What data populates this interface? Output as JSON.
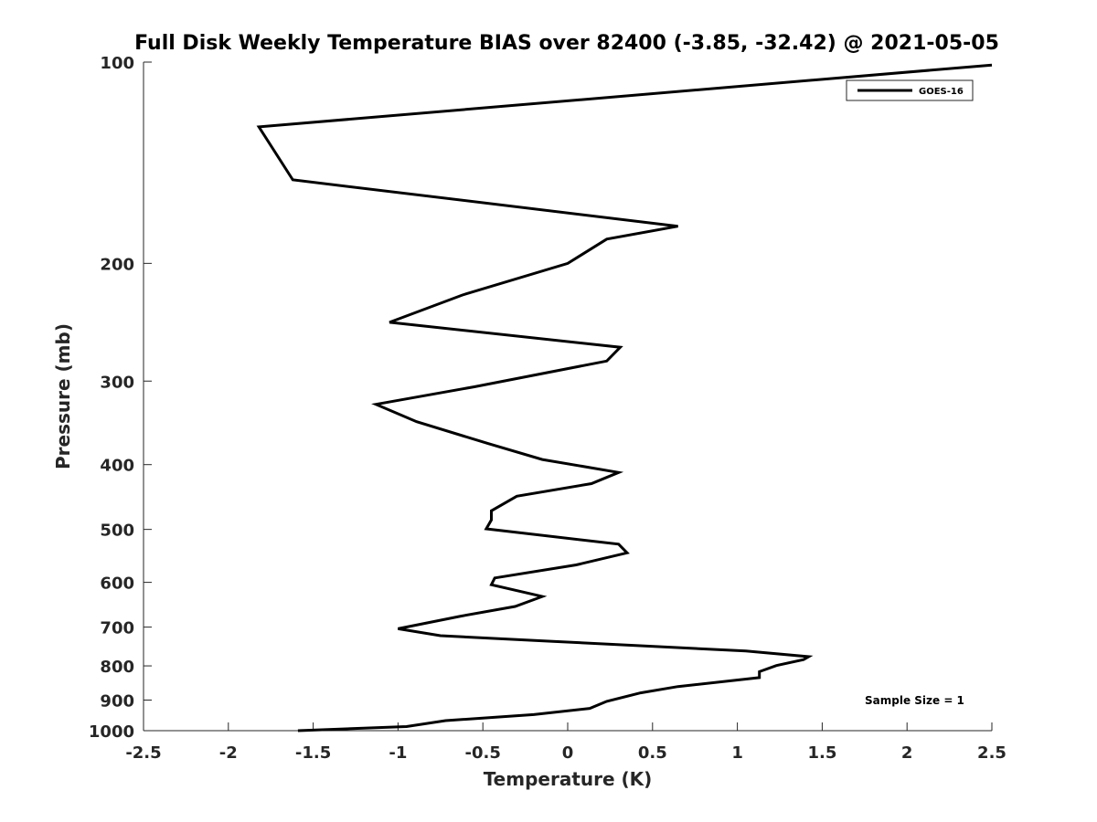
{
  "chart_data": {
    "type": "line",
    "title": "Full Disk Weekly Temperature BIAS over 82400 (-3.85, -32.42) @ 2021-05-05",
    "xlabel": "Temperature (K)",
    "ylabel": "Pressure (mb)",
    "xlim": [
      -2.5,
      2.5
    ],
    "ylim": [
      1000,
      100
    ],
    "yscale": "log",
    "y_reversed": true,
    "grid": false,
    "xticks": [
      -2.5,
      -2,
      -1.5,
      -1,
      -0.5,
      0,
      0.5,
      1,
      1.5,
      2,
      2.5
    ],
    "xtick_labels": [
      "-2.5",
      "-2",
      "-1.5",
      "-1",
      "-0.5",
      "0",
      "0.5",
      "1",
      "1.5",
      "2",
      "2.5"
    ],
    "yticks": [
      100,
      200,
      300,
      400,
      500,
      600,
      700,
      800,
      900,
      1000
    ],
    "ytick_labels": [
      "100",
      "200",
      "300",
      "400",
      "500",
      "600",
      "700",
      "800",
      "900",
      "1000"
    ],
    "legend": {
      "position": "top-right",
      "entries": [
        "GOES-16"
      ]
    },
    "annotation": "Sample Size = 1",
    "series": [
      {
        "name": "GOES-16",
        "color": "#000000",
        "points": [
          [
            2.5,
            101
          ],
          [
            -1.82,
            125
          ],
          [
            -1.62,
            150
          ],
          [
            0.65,
            176
          ],
          [
            0.23,
            184
          ],
          [
            0.0,
            200
          ],
          [
            -0.62,
            223
          ],
          [
            -1.05,
            245
          ],
          [
            0.31,
            267
          ],
          [
            0.23,
            280
          ],
          [
            -0.55,
            306
          ],
          [
            -1.13,
            325
          ],
          [
            -0.89,
            345
          ],
          [
            -0.47,
            372
          ],
          [
            -0.15,
            393
          ],
          [
            0.3,
            411
          ],
          [
            0.14,
            427
          ],
          [
            -0.3,
            446
          ],
          [
            -0.45,
            469
          ],
          [
            -0.45,
            484
          ],
          [
            -0.48,
            499
          ],
          [
            0.3,
            526
          ],
          [
            0.35,
            542
          ],
          [
            0.05,
            565
          ],
          [
            -0.43,
            591
          ],
          [
            -0.45,
            605
          ],
          [
            -0.15,
            630
          ],
          [
            -0.31,
            652
          ],
          [
            -0.63,
            674
          ],
          [
            -1.0,
            704
          ],
          [
            -0.75,
            721
          ],
          [
            -0.1,
            735
          ],
          [
            1.05,
            760
          ],
          [
            1.42,
            775
          ],
          [
            1.39,
            783
          ],
          [
            1.23,
            799
          ],
          [
            1.13,
            816
          ],
          [
            1.13,
            833
          ],
          [
            0.65,
            859
          ],
          [
            0.43,
            878
          ],
          [
            0.23,
            904
          ],
          [
            0.13,
            926
          ],
          [
            -0.2,
            946
          ],
          [
            -0.72,
            966
          ],
          [
            -0.95,
            986
          ],
          [
            -1.59,
            1000
          ]
        ]
      }
    ]
  }
}
